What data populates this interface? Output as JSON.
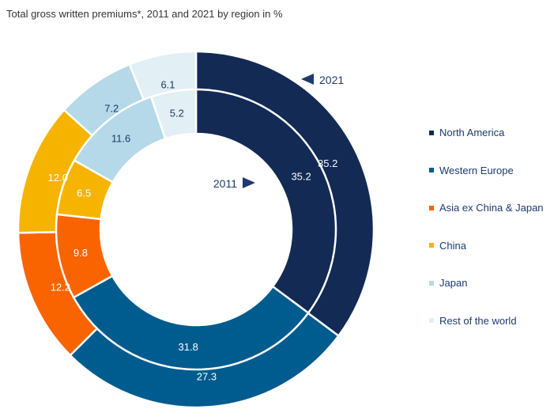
{
  "title": "Total gross written premiums*, 2011 and 2021 by region in %",
  "colors": {
    "North America": "#132a55",
    "Western Europe": "#005b8f",
    "Asia ex China & Japan": "#fa6400",
    "China": "#f6b400",
    "Japan": "#b5d9e8",
    "Rest of the world": "#e2eff5",
    "label_light": "#ffffff",
    "label_dark": "#1e3a6e"
  },
  "chart_data": {
    "type": "pie",
    "subtype": "nested-donut",
    "title": "Total gross written premiums*, 2011 and 2021 by region in %",
    "categories": [
      "North America",
      "Western Europe",
      "Asia ex China & Japan",
      "China",
      "Japan",
      "Rest of the world"
    ],
    "series": [
      {
        "name": "2021",
        "ring": "outer",
        "values": [
          35.2,
          27.3,
          12.2,
          12.0,
          7.2,
          6.1
        ]
      },
      {
        "name": "2011",
        "ring": "inner",
        "values": [
          35.2,
          31.8,
          9.8,
          6.5,
          11.6,
          5.2
        ]
      }
    ],
    "legend": "right"
  }
}
